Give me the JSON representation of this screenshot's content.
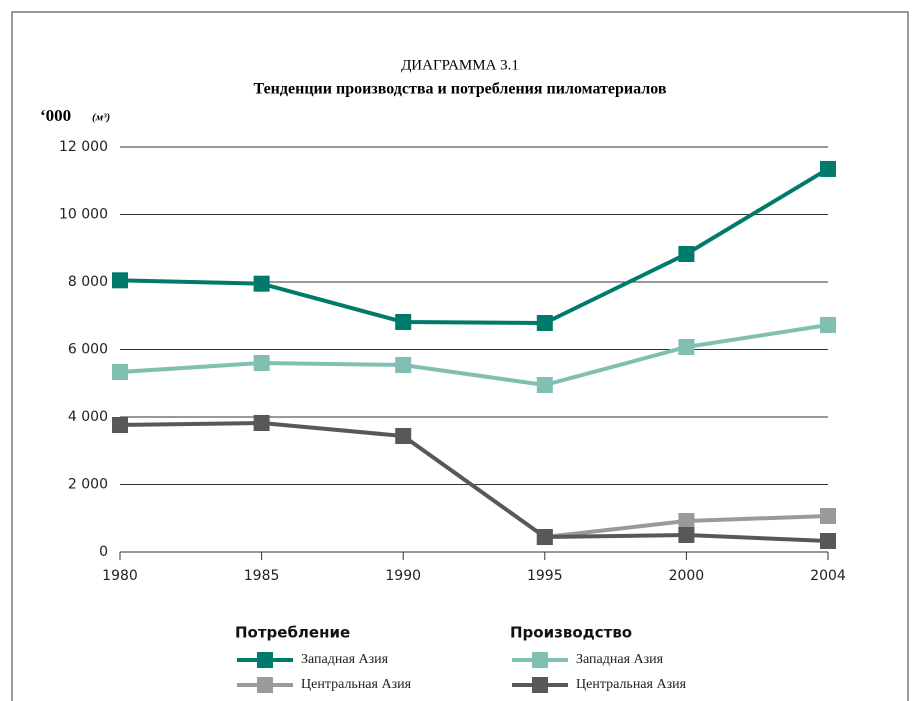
{
  "chart_data": {
    "type": "line",
    "subtitle": "ДИАГРАММА 3.1",
    "title": "Тенденции производства и потребления пиломатериалов",
    "y_label": "‘000",
    "y_unit": "(м³)",
    "categories": [
      "1980",
      "1985",
      "1990",
      "1995",
      "2000",
      "2004"
    ],
    "legend_titles": [
      "Потребление",
      "Производство"
    ],
    "series": [
      {
        "name": "Западная Азия",
        "color": "#007a6a",
        "values": [
          8050,
          7950,
          6815,
          6785,
          8830,
          11350
        ]
      },
      {
        "name": "Центральная Азия",
        "color": "#9a9a9a",
        "values": [
          null,
          null,
          null,
          444,
          918,
          1067
        ]
      },
      {
        "name": "Западная Азия",
        "color": "#80bfb2",
        "values": [
          5333,
          5600,
          5541,
          4948,
          6074,
          6726
        ]
      },
      {
        "name": "Центральная Азия",
        "color": "#58585a",
        "values": [
          3763,
          3822,
          3437,
          444,
          504,
          326
        ]
      }
    ],
    "ylim": [
      0,
      12000
    ],
    "yticks": [
      0,
      {
        "value": 2000,
        "label": "2 000"
      },
      {
        "value": 4000,
        "label": "4 000"
      },
      {
        "value": 6000,
        "label": "6 000"
      },
      {
        "value": 8000,
        "label": "8 000"
      },
      {
        "value": 10000,
        "label": "10 000"
      },
      {
        "value": 12000,
        "label": "12 000"
      }
    ],
    "grid": true
  }
}
